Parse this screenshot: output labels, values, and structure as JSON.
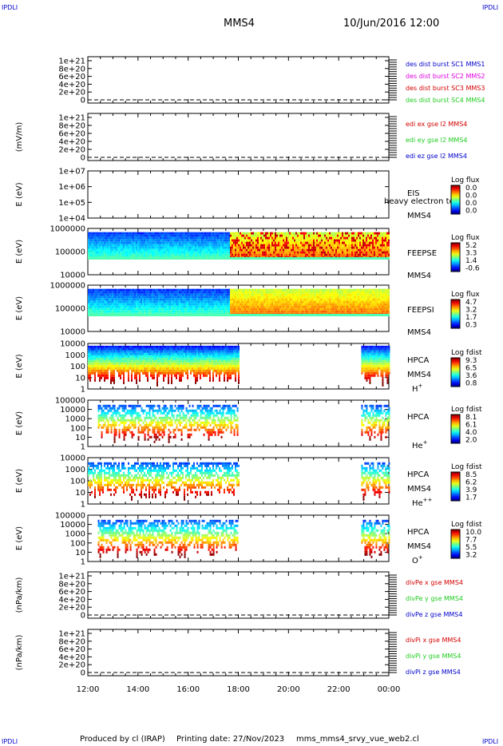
{
  "header": {
    "title": "MMS4",
    "datetime": "10/Jun/2016 12:00",
    "corner_left_top": "IPDLI",
    "corner_right_top": "IPDLI",
    "corner_left_bottom": "IPDLI",
    "corner_right_bottom": "IPDLI"
  },
  "footer": {
    "produced_by": "Produced by cl (IRAP)",
    "printing_date": "Printing date: 27/Nov/2023",
    "filename": "mms_mms4_srvy_vue_web2.cl"
  },
  "colors": {
    "red": "#d40000",
    "magenta": "#e000e0",
    "green": "#22cc22",
    "blue": "#0000cc"
  },
  "chart_data": [
    {
      "type": "line",
      "panel": "des-dist-burst",
      "ylabel": "",
      "yticks": [
        "1e+21",
        "8e+20",
        "6e+20",
        "4e+20",
        "2e+20",
        "0"
      ],
      "ylim": [
        0,
        1e+21
      ],
      "legend": [
        {
          "name": "des dist burst SC1 MMS1",
          "color": "#0000cc"
        },
        {
          "name": "des dist burst SC2 MMS2",
          "color": "#e000e0"
        },
        {
          "name": "des dist burst SC3 MMS3",
          "color": "#d40000"
        },
        {
          "name": "des dist burst SC4 MMS4",
          "color": "#22cc22"
        }
      ],
      "series": []
    },
    {
      "type": "line",
      "panel": "edi-e-gse",
      "ylabel": "(mV/m)",
      "yticks": [
        "1e+21",
        "8e+20",
        "6e+20",
        "4e+20",
        "2e+20",
        "0"
      ],
      "ylim": [
        0,
        1e+21
      ],
      "legend": [
        {
          "name": "edi ex gse l2 MMS4",
          "color": "#d40000"
        },
        {
          "name": "edi ey gse l2 MMS4",
          "color": "#22cc22"
        },
        {
          "name": "edi ez gse l2 MMS4",
          "color": "#0000cc"
        }
      ],
      "series": []
    },
    {
      "type": "heatmap",
      "panel": "eis",
      "ylabel": "E (eV)",
      "yticks": [
        "1e+07",
        "1e+06",
        "1e+05",
        "1e+04"
      ],
      "ylim": [
        10000.0,
        10000000.0
      ],
      "yscale": "log",
      "instrument": "EIS",
      "spacecraft": "MMS4",
      "overlay": "heavy electron to",
      "cbar_title": "Log flux",
      "cbar_ticks": [
        "0.0",
        "0.0",
        "0.0",
        "0.0"
      ],
      "data_spans": []
    },
    {
      "type": "heatmap",
      "panel": "feepse",
      "ylabel": "E (eV)",
      "yticks": [
        "1000000",
        "100000",
        "10000"
      ],
      "ylim": [
        10000,
        1000000
      ],
      "yscale": "log",
      "instrument": "FEEPSE",
      "spacecraft": "MMS4",
      "cbar_title": "Log flux",
      "cbar_ticks": [
        "5.2",
        "3.3",
        "1.4",
        "-0.6"
      ],
      "data_spans": [
        [
          0,
          12
        ]
      ]
    },
    {
      "type": "heatmap",
      "panel": "feepsi",
      "ylabel": "E (eV)",
      "yticks": [
        "1000000",
        "100000",
        "10000"
      ],
      "ylim": [
        10000,
        1000000
      ],
      "yscale": "log",
      "instrument": "FEEPSI",
      "spacecraft": "MMS4",
      "cbar_title": "Log flux",
      "cbar_ticks": [
        "4.7",
        "3.2",
        "1.7",
        "0.3"
      ],
      "data_spans": [
        [
          0,
          12
        ]
      ]
    },
    {
      "type": "heatmap",
      "panel": "hpca-h",
      "ylabel": "E (eV)",
      "yticks": [
        "10000",
        "1000",
        "100",
        "10",
        "1"
      ],
      "ylim": [
        1,
        30000
      ],
      "yscale": "log",
      "instrument": "HPCA",
      "spacecraft": "MMS4",
      "species": "H",
      "species_sup": "+",
      "cbar_title": "Log fdist",
      "cbar_ticks": [
        "9.3",
        "6.5",
        "3.6",
        "0.8"
      ],
      "data_spans": [
        [
          0,
          6
        ],
        [
          10.9,
          12
        ]
      ]
    },
    {
      "type": "heatmap",
      "panel": "hpca-he",
      "ylabel": "E (eV)",
      "yticks": [
        "100000",
        "10000",
        "1000",
        "100",
        "10",
        "1"
      ],
      "ylim": [
        1,
        100000
      ],
      "yscale": "log",
      "instrument": "HPCA",
      "spacecraft": "",
      "species": "He",
      "species_sup": "+",
      "cbar_title": "Log fdist",
      "cbar_ticks": [
        "8.1",
        "6.1",
        "4.0",
        "2.0"
      ],
      "data_spans": [
        [
          0.4,
          6
        ],
        [
          10.9,
          12
        ]
      ]
    },
    {
      "type": "heatmap",
      "panel": "hpca-he2",
      "ylabel": "E (eV)",
      "yticks": [
        "10000",
        "1000",
        "100",
        "10",
        "1"
      ],
      "ylim": [
        1,
        30000
      ],
      "yscale": "log",
      "instrument": "HPCA",
      "spacecraft": "MMS4",
      "species": "He",
      "species_sup": "++",
      "cbar_title": "Log fdist",
      "cbar_ticks": [
        "8.5",
        "6.2",
        "3.9",
        "1.7"
      ],
      "data_spans": [
        [
          0,
          6
        ],
        [
          10.9,
          12
        ]
      ]
    },
    {
      "type": "heatmap",
      "panel": "hpca-o",
      "ylabel": "E (eV)",
      "yticks": [
        "100000",
        "10000",
        "1000",
        "100",
        "10",
        "1"
      ],
      "ylim": [
        1,
        100000
      ],
      "yscale": "log",
      "instrument": "HPCA",
      "spacecraft": "MMS4",
      "species": "O",
      "species_sup": "+",
      "cbar_title": "Log fdist",
      "cbar_ticks": [
        "10.0",
        "7.7",
        "5.5",
        "3.2"
      ],
      "data_spans": [
        [
          0.4,
          6
        ],
        [
          10.9,
          12
        ]
      ]
    },
    {
      "type": "line",
      "panel": "divpe",
      "ylabel": "(nPa/km)",
      "yticks": [
        "1e+21",
        "8e+20",
        "6e+20",
        "4e+20",
        "2e+20",
        "0"
      ],
      "ylim": [
        0,
        1e+21
      ],
      "legend": [
        {
          "name": "divPe x gse MMS4",
          "color": "#d40000"
        },
        {
          "name": "divPe y gse MMS4",
          "color": "#22cc22"
        },
        {
          "name": "divPe z gse MMS4",
          "color": "#0000cc"
        }
      ],
      "series": []
    },
    {
      "type": "line",
      "panel": "divpi",
      "ylabel": "(nPa/km)",
      "yticks": [
        "1e+21",
        "8e+20",
        "6e+20",
        "4e+20",
        "2e+20",
        "0"
      ],
      "ylim": [
        0,
        1e+21
      ],
      "legend": [
        {
          "name": "divPi x gse MMS4",
          "color": "#d40000"
        },
        {
          "name": "divPi y gse MMS4",
          "color": "#22cc22"
        },
        {
          "name": "divPi z gse MMS4",
          "color": "#0000cc"
        }
      ],
      "series": []
    }
  ],
  "xaxis": {
    "tick_labels": [
      "12:00",
      "14:00",
      "16:00",
      "18:00",
      "20:00",
      "22:00",
      "00:00"
    ],
    "xlim_hours": [
      0,
      12
    ]
  }
}
